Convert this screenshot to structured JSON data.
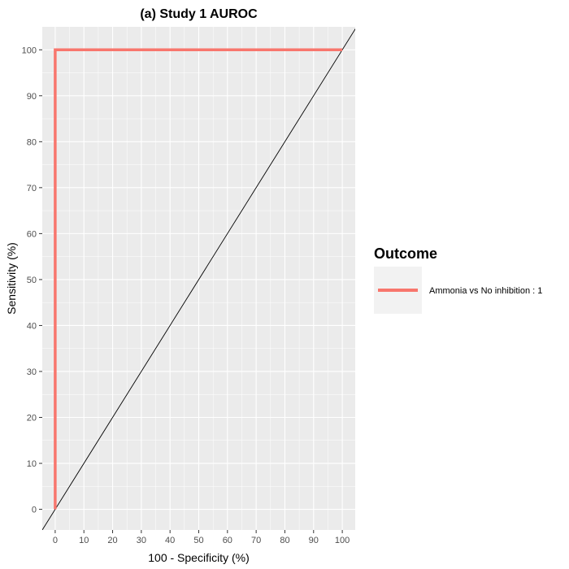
{
  "chart_data": {
    "type": "line",
    "title": "(a) Study 1 AUROC",
    "xlabel": "100 - Specificity (%)",
    "ylabel": "Sensitivity (%)",
    "xlim": [
      -4.5,
      104.5
    ],
    "ylim": [
      -4.5,
      105
    ],
    "x_ticks": [
      0,
      10,
      20,
      30,
      40,
      50,
      60,
      70,
      80,
      90,
      100
    ],
    "y_ticks": [
      0,
      10,
      20,
      30,
      40,
      50,
      60,
      70,
      80,
      90,
      100
    ],
    "grid": true,
    "panel_background": "#ebebeb",
    "grid_color": "#ffffff",
    "reference_line": {
      "type": "diagonal",
      "color": "#000000"
    },
    "legend": {
      "title": "Outcome",
      "position": "right"
    },
    "series": [
      {
        "name": "Ammonia vs No inhibition : 1",
        "color": "#f8766d",
        "x": [
          0,
          0,
          100
        ],
        "y": [
          0,
          100,
          100
        ]
      }
    ]
  }
}
